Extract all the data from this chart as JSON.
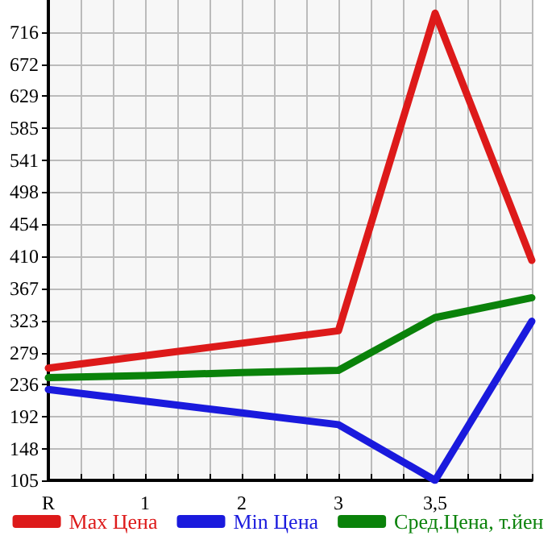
{
  "chart_data": {
    "type": "line",
    "categories": [
      "R",
      "1",
      "2",
      "3",
      "3,5",
      null
    ],
    "series": [
      {
        "name": "Max Цена",
        "color": "#dd1a1a",
        "values": [
          258,
          275,
          292,
          309,
          742,
          405
        ]
      },
      {
        "name": "Min Цена",
        "color": "#1a1add",
        "values": [
          229,
          213,
          197,
          181,
          105,
          322
        ]
      },
      {
        "name": "Сред.Цена, т.йен",
        "color": "#0a820a",
        "values": [
          245,
          248,
          252,
          255,
          327,
          354
        ]
      }
    ],
    "ylim": [
      105,
      760
    ],
    "yticks": [
      105,
      148,
      192,
      236,
      279,
      323,
      367,
      410,
      454,
      498,
      541,
      585,
      629,
      672,
      716
    ],
    "grid": true,
    "legend": "bottom",
    "marker": "none",
    "line_style": "solid"
  }
}
